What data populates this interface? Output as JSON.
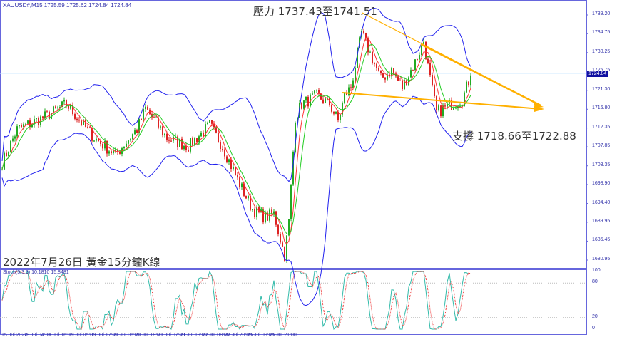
{
  "header": {
    "symbol_line": "XAUUSD#,M15  1725.59 1725.62 1724.84 1724.84"
  },
  "annotations": {
    "resistance": "壓力 1737.43至1741.51",
    "support": "支撐 1718.66至1722.88",
    "title": "2022年7月26日 黃金15分鐘K線"
  },
  "price_axis": {
    "ticks": [
      "1739.20",
      "1734.75",
      "1730.25",
      "1725.75",
      "1721.30",
      "1716.80",
      "1712.35",
      "1707.85",
      "1703.35",
      "1698.90",
      "1694.40",
      "1689.95",
      "1685.45",
      "1680.95"
    ],
    "current": "1724.84"
  },
  "stoch": {
    "label": "Stoch(5,3,3) 10.1810 15.8481",
    "ticks": [
      "100",
      "80",
      "20",
      "0"
    ]
  },
  "time_axis": {
    "labels": [
      "15 Jul 2022",
      "18 Jul 04:00",
      "18 Jul 16:00",
      "19 Jul 05:00",
      "19 Jul 17:00",
      "20 Jul 06:00",
      "20 Jul 18:00",
      "21 Jul 07:00",
      "21 Jul 19:00",
      "22 Jul 08:00",
      "22 Jul 20:00",
      "25 Jul 09:00",
      "25 Jul 21:00"
    ]
  },
  "colors": {
    "axis": "#6666dd",
    "bands": "#2222ee",
    "up": "#22aa22",
    "down": "#dd2222",
    "trend": "#ffb000",
    "ma_fast": "#ff3333",
    "ma_slow": "#22cc22",
    "stoch_main": "#33bbaa",
    "stoch_signal": "#ee3333"
  },
  "chart_data": {
    "type": "candlestick",
    "ylim": [
      1680.95,
      1739.2
    ],
    "close_path": [
      [
        0,
        1704
      ],
      [
        7,
        1712
      ],
      [
        20,
        1715
      ],
      [
        30,
        1718
      ],
      [
        43,
        1710
      ],
      [
        53,
        1706
      ],
      [
        63,
        1712
      ],
      [
        67,
        1717
      ],
      [
        77,
        1710
      ],
      [
        87,
        1708
      ],
      [
        97,
        1713
      ],
      [
        103,
        1708
      ],
      [
        110,
        1700
      ],
      [
        117,
        1693
      ],
      [
        123,
        1691
      ],
      [
        127,
        1692
      ],
      [
        132,
        1682
      ],
      [
        134,
        1690
      ],
      [
        137,
        1715
      ],
      [
        140,
        1718
      ],
      [
        147,
        1720
      ],
      [
        153,
        1718
      ],
      [
        157,
        1714
      ],
      [
        160,
        1720
      ],
      [
        163,
        1722
      ],
      [
        168,
        1735
      ],
      [
        172,
        1730
      ],
      [
        177,
        1724
      ],
      [
        182,
        1726
      ],
      [
        187,
        1722
      ],
      [
        193,
        1728
      ],
      [
        197,
        1733
      ],
      [
        200,
        1724
      ],
      [
        203,
        1716
      ],
      [
        210,
        1718
      ],
      [
        215,
        1719
      ],
      [
        219,
        1725
      ]
    ]
  }
}
